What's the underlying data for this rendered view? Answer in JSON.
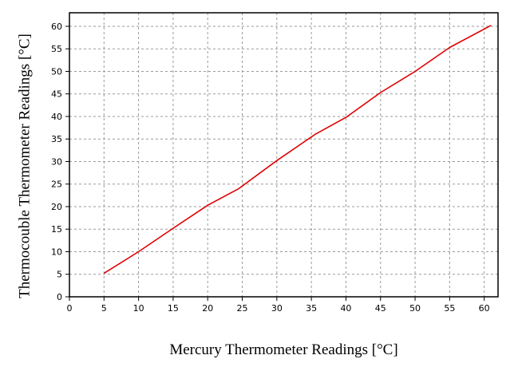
{
  "chart_data": {
    "type": "line",
    "title": "",
    "xlabel": "Mercury Thermometer Readings [°C]",
    "ylabel": "Thermocouble Thermometer Readings [°C]",
    "xlim": [
      0,
      62
    ],
    "ylim": [
      0,
      63
    ],
    "x_ticks": [
      0,
      5,
      10,
      15,
      20,
      25,
      30,
      35,
      40,
      45,
      50,
      55,
      60
    ],
    "y_ticks": [
      0,
      5,
      10,
      15,
      20,
      25,
      30,
      35,
      40,
      45,
      50,
      55,
      60
    ],
    "grid": true,
    "series": [
      {
        "color": "#e00000",
        "x": [
          5,
          10,
          15,
          20,
          24.5,
          30,
          35.5,
          40,
          45,
          50,
          55,
          61
        ],
        "y": [
          5.2,
          10,
          15.2,
          20.3,
          24,
          30.2,
          36,
          39.8,
          45.3,
          50,
          55.3,
          60.2
        ]
      }
    ]
  }
}
